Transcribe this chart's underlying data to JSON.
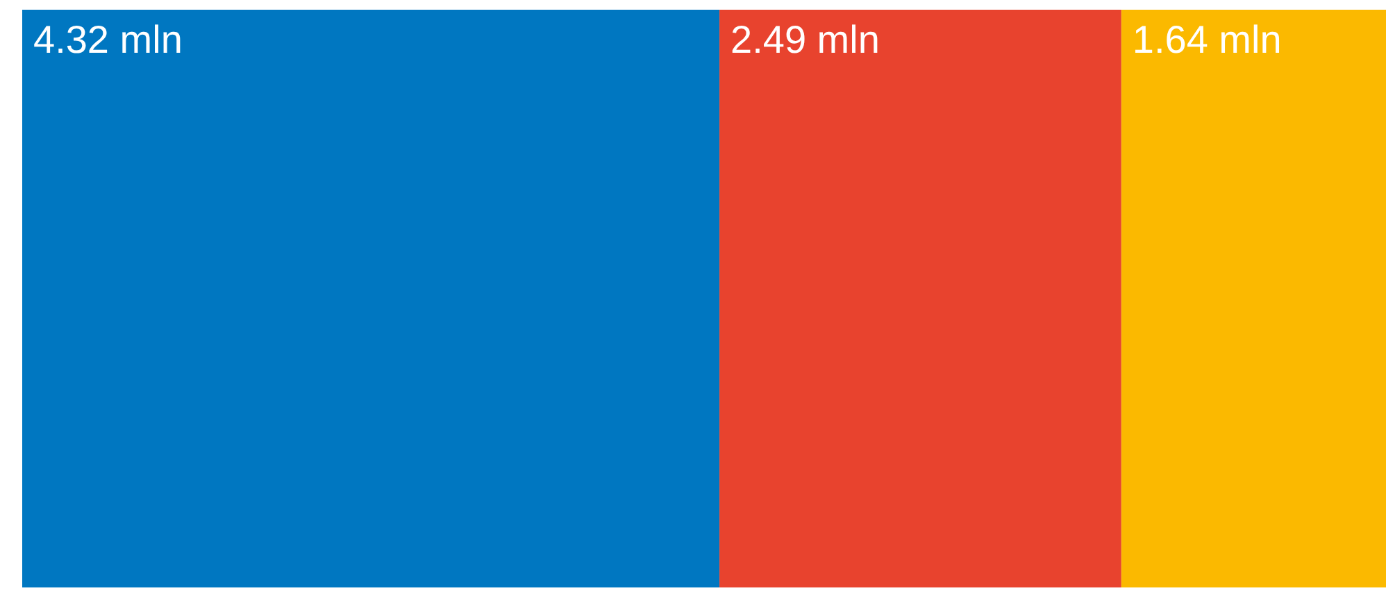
{
  "chart_data": {
    "type": "other",
    "categories": [
      null,
      null,
      null
    ],
    "values": [
      4.32,
      2.49,
      1.64
    ],
    "colors": [
      "#0077c1",
      "#e8432e",
      "#fbb900"
    ],
    "value_labels": [
      "4.32 mln",
      "2.49 mln",
      "1.64 mln"
    ]
  }
}
